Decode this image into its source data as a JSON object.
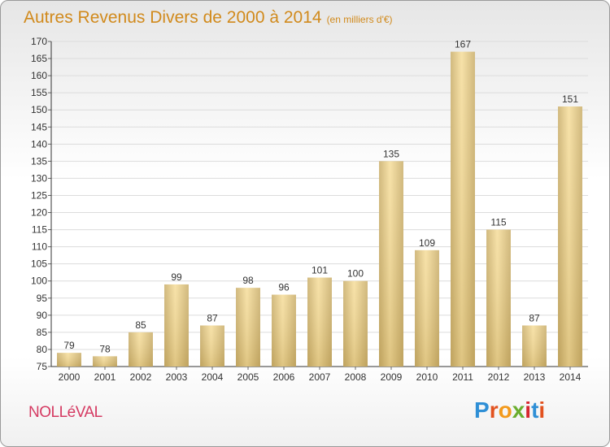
{
  "title": "Autres Revenus Divers de 2000 à 2014",
  "unit_label": "(en milliers d'€)",
  "town": "NOLLéVAL",
  "logo": {
    "text": "Proxiti",
    "letter_colors": [
      "#2f8fd6",
      "#e2521f",
      "#f39a1c",
      "#6aae2e",
      "#d6262e",
      "#2f8fd6",
      "#e2521f"
    ]
  },
  "colors": {
    "title": "#d18a1c",
    "bar_light": "#f6dd9a",
    "bar_dark": "#c9ad68",
    "grid": "#dcdcdc"
  },
  "chart_data": {
    "type": "bar",
    "title": "Autres Revenus Divers de 2000 à 2014",
    "categories": [
      "2000",
      "2001",
      "2002",
      "2003",
      "2004",
      "2005",
      "2006",
      "2007",
      "2008",
      "2009",
      "2010",
      "2011",
      "2012",
      "2013",
      "2014"
    ],
    "values": [
      79,
      78,
      85,
      99,
      87,
      98,
      96,
      101,
      100,
      135,
      109,
      167,
      115,
      87,
      151
    ],
    "ylim": [
      75,
      170
    ],
    "ytick_step": 5,
    "grid": true,
    "data_labels": true
  }
}
